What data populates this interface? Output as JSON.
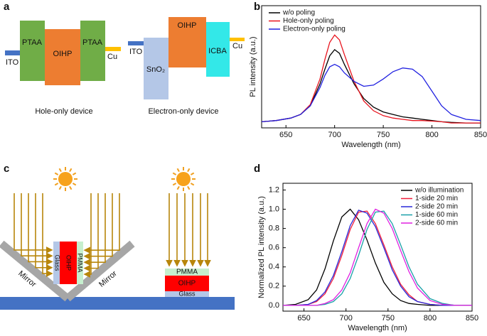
{
  "panel_labels": [
    "a",
    "b",
    "c",
    "d"
  ],
  "diagram_a": {
    "hole_only": {
      "labels": [
        "ITO",
        "PTAA",
        "OIHP",
        "PTAA",
        "Cu"
      ],
      "caption": "Hole-only device"
    },
    "electron_only": {
      "labels": [
        "ITO",
        "SnO₂",
        "OIHP",
        "ICBA",
        "Cu"
      ],
      "caption": "Electron-only device"
    }
  },
  "diagram_c": {
    "mirror_labels": [
      "Mirror",
      "Mirror"
    ],
    "vertical_stack": [
      "Glass",
      "OIHP",
      "PMMA"
    ],
    "horizontal_stack": [
      "PMMA",
      "OIHP",
      "Glass"
    ]
  },
  "chart_data": [
    {
      "type": "line",
      "xlabel": "Wavelength (nm)",
      "ylabel": "PL intensity (a.u.)",
      "x": [
        625,
        640,
        655,
        665,
        675,
        685,
        690,
        695,
        700,
        705,
        710,
        720,
        730,
        740,
        750,
        760,
        770,
        780,
        790,
        800,
        810,
        820,
        835,
        850
      ],
      "series": [
        {
          "name": "w/o poling",
          "color": "#000000",
          "values": [
            0.05,
            0.06,
            0.08,
            0.11,
            0.18,
            0.36,
            0.48,
            0.59,
            0.64,
            0.61,
            0.52,
            0.36,
            0.24,
            0.17,
            0.13,
            0.11,
            0.09,
            0.08,
            0.07,
            0.06,
            0.05,
            0.045,
            0.04,
            0.04
          ]
        },
        {
          "name": "Hole-only poling",
          "color": "#e8141e",
          "values": [
            0.05,
            0.06,
            0.08,
            0.11,
            0.19,
            0.4,
            0.56,
            0.7,
            0.76,
            0.72,
            0.6,
            0.38,
            0.22,
            0.14,
            0.1,
            0.08,
            0.07,
            0.06,
            0.06,
            0.055,
            0.05,
            0.04,
            0.04,
            0.04
          ]
        },
        {
          "name": "Electron-only poling",
          "color": "#2020e0",
          "values": [
            0.05,
            0.06,
            0.08,
            0.11,
            0.18,
            0.33,
            0.43,
            0.5,
            0.52,
            0.5,
            0.45,
            0.38,
            0.34,
            0.35,
            0.4,
            0.46,
            0.49,
            0.48,
            0.42,
            0.3,
            0.18,
            0.11,
            0.07,
            0.06
          ]
        }
      ],
      "xlim": [
        625,
        850
      ],
      "xticks": [
        650,
        700,
        750,
        800,
        850
      ],
      "ylim": [
        0,
        1
      ],
      "legend": "upper left"
    },
    {
      "type": "line",
      "xlabel": "Wavelength (nm)",
      "ylabel": "Normalized PL intensity (a.u.)",
      "x": [
        625,
        640,
        655,
        665,
        675,
        685,
        695,
        705,
        715,
        725,
        735,
        745,
        755,
        765,
        775,
        785,
        800,
        815,
        830,
        850
      ],
      "series": [
        {
          "name": "w/o illumination",
          "color": "#000000",
          "values": [
            0,
            0.01,
            0.06,
            0.16,
            0.38,
            0.67,
            0.92,
            1.0,
            0.89,
            0.68,
            0.44,
            0.24,
            0.12,
            0.05,
            0.02,
            0.01,
            0,
            0,
            0,
            0
          ]
        },
        {
          "name": "1-side 20 min",
          "color": "#f01e3c",
          "values": [
            0,
            0,
            0.01,
            0.04,
            0.12,
            0.28,
            0.52,
            0.79,
            0.97,
            0.98,
            0.85,
            0.63,
            0.4,
            0.22,
            0.11,
            0.04,
            0.01,
            0,
            0,
            0
          ]
        },
        {
          "name": "2-side 20 min",
          "color": "#2828d8",
          "values": [
            0,
            0,
            0.01,
            0.05,
            0.14,
            0.31,
            0.56,
            0.83,
            0.99,
            0.96,
            0.82,
            0.6,
            0.37,
            0.2,
            0.09,
            0.04,
            0.01,
            0,
            0,
            0
          ]
        },
        {
          "name": "1-side 60 min",
          "color": "#1aa0a8",
          "values": [
            0,
            0,
            0,
            0,
            0.01,
            0.04,
            0.12,
            0.28,
            0.52,
            0.79,
            0.97,
            0.98,
            0.85,
            0.63,
            0.4,
            0.22,
            0.07,
            0.02,
            0,
            0
          ]
        },
        {
          "name": "2-side 60 min",
          "color": "#e020e0",
          "values": [
            0,
            0,
            0,
            0,
            0.02,
            0.06,
            0.16,
            0.34,
            0.6,
            0.85,
            1.0,
            0.96,
            0.8,
            0.57,
            0.35,
            0.18,
            0.05,
            0.01,
            0,
            0
          ]
        }
      ],
      "xlim": [
        625,
        850
      ],
      "xticks": [
        650,
        700,
        750,
        800,
        850
      ],
      "ylim": [
        -0.06,
        1.27
      ],
      "yticks": [
        {
          "value": 0,
          "label": "0.0"
        },
        0.2,
        0.4,
        0.6,
        0.8,
        {
          "value": 1,
          "label": "1.0"
        },
        1.2
      ],
      "legend": "upper right"
    }
  ]
}
